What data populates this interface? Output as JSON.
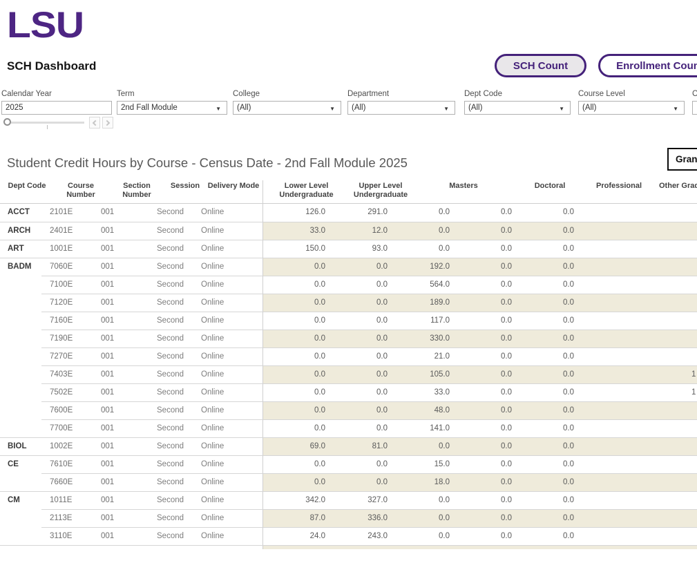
{
  "app": {
    "logo": "LSU",
    "title": "SCH Dashboard"
  },
  "colors": {
    "lsu_purple": "#4d2583",
    "button_purple": "#44217a",
    "row_beige": "#efebdb"
  },
  "toolbar": {
    "sch_count_label": "SCH Count",
    "enrollment_count_label": "Enrollment Count"
  },
  "filters": {
    "calendar_year": {
      "label": "Calendar Year",
      "value": "2025"
    },
    "term": {
      "label": "Term",
      "value": "2nd Fall Module"
    },
    "college": {
      "label": "College",
      "value": "(All)"
    },
    "department": {
      "label": "Department",
      "value": "(All)"
    },
    "dept_code": {
      "label": "Dept Code",
      "value": "(All)"
    },
    "course_level": {
      "label": "Course Level",
      "value": "(All)"
    },
    "clipped": {
      "label": "C",
      "value": ""
    }
  },
  "table": {
    "title": "Student Credit Hours by Course - Census Date - 2nd Fall Module 2025",
    "grand_total_button": "Grand Total",
    "columns": [
      "Dept Code",
      "Course Number",
      "Section Number",
      "Session",
      "Delivery Mode",
      "Lower Level Undergraduate",
      "Upper Level Undergraduate",
      "Masters",
      "Doctoral",
      "Professional",
      "Other Graduate"
    ],
    "rows": [
      {
        "dept": "ACCT",
        "course": "2101E",
        "section": "001",
        "session": "Second",
        "delivery": "Online",
        "values": [
          "126.0",
          "291.0",
          "0.0",
          "0.0",
          "0.0"
        ],
        "other": "",
        "group_start": true
      },
      {
        "dept": "ARCH",
        "course": "2401E",
        "section": "001",
        "session": "Second",
        "delivery": "Online",
        "values": [
          "33.0",
          "12.0",
          "0.0",
          "0.0",
          "0.0"
        ],
        "other": "",
        "group_start": true
      },
      {
        "dept": "ART",
        "course": "1001E",
        "section": "001",
        "session": "Second",
        "delivery": "Online",
        "values": [
          "150.0",
          "93.0",
          "0.0",
          "0.0",
          "0.0"
        ],
        "other": "",
        "group_start": true
      },
      {
        "dept": "BADM",
        "course": "7060E",
        "section": "001",
        "session": "Second",
        "delivery": "Online",
        "values": [
          "0.0",
          "0.0",
          "192.0",
          "0.0",
          "0.0"
        ],
        "other": "",
        "group_start": true
      },
      {
        "dept": "",
        "course": "7100E",
        "section": "001",
        "session": "Second",
        "delivery": "Online",
        "values": [
          "0.0",
          "0.0",
          "564.0",
          "0.0",
          "0.0"
        ],
        "other": "",
        "group_start": false
      },
      {
        "dept": "",
        "course": "7120E",
        "section": "001",
        "session": "Second",
        "delivery": "Online",
        "values": [
          "0.0",
          "0.0",
          "189.0",
          "0.0",
          "0.0"
        ],
        "other": "",
        "group_start": false
      },
      {
        "dept": "",
        "course": "7160E",
        "section": "001",
        "session": "Second",
        "delivery": "Online",
        "values": [
          "0.0",
          "0.0",
          "117.0",
          "0.0",
          "0.0"
        ],
        "other": "",
        "group_start": false
      },
      {
        "dept": "",
        "course": "7190E",
        "section": "001",
        "session": "Second",
        "delivery": "Online",
        "values": [
          "0.0",
          "0.0",
          "330.0",
          "0.0",
          "0.0"
        ],
        "other": "",
        "group_start": false
      },
      {
        "dept": "",
        "course": "7270E",
        "section": "001",
        "session": "Second",
        "delivery": "Online",
        "values": [
          "0.0",
          "0.0",
          "21.0",
          "0.0",
          "0.0"
        ],
        "other": "",
        "group_start": false
      },
      {
        "dept": "",
        "course": "7403E",
        "section": "001",
        "session": "Second",
        "delivery": "Online",
        "values": [
          "0.0",
          "0.0",
          "105.0",
          "0.0",
          "0.0"
        ],
        "other": "1",
        "group_start": false
      },
      {
        "dept": "",
        "course": "7502E",
        "section": "001",
        "session": "Second",
        "delivery": "Online",
        "values": [
          "0.0",
          "0.0",
          "33.0",
          "0.0",
          "0.0"
        ],
        "other": "1",
        "group_start": false
      },
      {
        "dept": "",
        "course": "7600E",
        "section": "001",
        "session": "Second",
        "delivery": "Online",
        "values": [
          "0.0",
          "0.0",
          "48.0",
          "0.0",
          "0.0"
        ],
        "other": "",
        "group_start": false
      },
      {
        "dept": "",
        "course": "7700E",
        "section": "001",
        "session": "Second",
        "delivery": "Online",
        "values": [
          "0.0",
          "0.0",
          "141.0",
          "0.0",
          "0.0"
        ],
        "other": "",
        "group_start": false
      },
      {
        "dept": "BIOL",
        "course": "1002E",
        "section": "001",
        "session": "Second",
        "delivery": "Online",
        "values": [
          "69.0",
          "81.0",
          "0.0",
          "0.0",
          "0.0"
        ],
        "other": "",
        "group_start": true
      },
      {
        "dept": "CE",
        "course": "7610E",
        "section": "001",
        "session": "Second",
        "delivery": "Online",
        "values": [
          "0.0",
          "0.0",
          "15.0",
          "0.0",
          "0.0"
        ],
        "other": "",
        "group_start": true
      },
      {
        "dept": "",
        "course": "7660E",
        "section": "001",
        "session": "Second",
        "delivery": "Online",
        "values": [
          "0.0",
          "0.0",
          "18.0",
          "0.0",
          "0.0"
        ],
        "other": "",
        "group_start": false
      },
      {
        "dept": "CM",
        "course": "1011E",
        "section": "001",
        "session": "Second",
        "delivery": "Online",
        "values": [
          "342.0",
          "327.0",
          "0.0",
          "0.0",
          "0.0"
        ],
        "other": "",
        "group_start": true
      },
      {
        "dept": "",
        "course": "2113E",
        "section": "001",
        "session": "Second",
        "delivery": "Online",
        "values": [
          "87.0",
          "336.0",
          "0.0",
          "0.0",
          "0.0"
        ],
        "other": "",
        "group_start": false
      },
      {
        "dept": "",
        "course": "3110E",
        "section": "001",
        "session": "Second",
        "delivery": "Online",
        "values": [
          "24.0",
          "243.0",
          "0.0",
          "0.0",
          "0.0"
        ],
        "other": "",
        "group_start": false
      }
    ]
  }
}
